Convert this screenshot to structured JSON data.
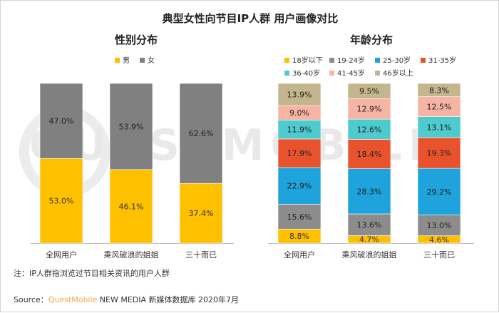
{
  "title": "典型女性向节目IP人群 用户画像对比",
  "colors": {
    "male": "#ffc000",
    "female": "#808080",
    "a18": "#ffc000",
    "a19": "#8c8c8c",
    "a25": "#1ea3dc",
    "a31": "#e8532d",
    "a36": "#4ecbcf",
    "a41": "#f7b4a4",
    "a46": "#c3b68e"
  },
  "gender": {
    "title": "性别分布",
    "legend": [
      "男",
      "女"
    ],
    "chart_data": {
      "type": "bar",
      "stacked": true,
      "categories": [
        "全网用户",
        "乘风破浪的姐姐",
        "三十而已"
      ],
      "series": [
        {
          "name": "男",
          "values": [
            53.0,
            46.1,
            37.4
          ],
          "labels": [
            "53.0%",
            "46.1%",
            "37.4%"
          ]
        },
        {
          "name": "女",
          "values": [
            47.0,
            53.9,
            62.6
          ],
          "labels": [
            "47.0%",
            "53.9%",
            "62.6%"
          ]
        }
      ],
      "ylim": [
        0,
        100
      ]
    }
  },
  "age": {
    "title": "年龄分布",
    "legend": [
      "18岁以下",
      "19-24岁",
      "25-30岁",
      "31-35岁",
      "36-40岁",
      "41-45岁",
      "46岁以上"
    ],
    "chart_data": {
      "type": "bar",
      "stacked": true,
      "categories": [
        "全网用户",
        "乘风破浪的姐姐",
        "三十而已"
      ],
      "series": [
        {
          "name": "18岁以下",
          "values": [
            8.8,
            4.7,
            4.6
          ],
          "labels": [
            "8.8%",
            "4.7%",
            "4.6%"
          ]
        },
        {
          "name": "19-24岁",
          "values": [
            15.6,
            13.6,
            13.0
          ],
          "labels": [
            "15.6%",
            "13.6%",
            "13.0%"
          ]
        },
        {
          "name": "25-30岁",
          "values": [
            22.9,
            28.3,
            29.2
          ],
          "labels": [
            "22.9%",
            "28.3%",
            "29.2%"
          ]
        },
        {
          "name": "31-35岁",
          "values": [
            17.9,
            18.4,
            19.3
          ],
          "labels": [
            "17.9%",
            "18.4%",
            "19.3%"
          ]
        },
        {
          "name": "36-40岁",
          "values": [
            11.9,
            12.6,
            13.1
          ],
          "labels": [
            "11.9%",
            "12.6%",
            "13.1%"
          ]
        },
        {
          "name": "41-45岁",
          "values": [
            9.0,
            12.9,
            12.5
          ],
          "labels": [
            "9.0%",
            "12.9%",
            "12.5%"
          ]
        },
        {
          "name": "46岁以上",
          "values": [
            13.9,
            9.5,
            8.3
          ],
          "labels": [
            "13.9%",
            "9.5%",
            "8.3%"
          ]
        }
      ],
      "ylim": [
        0,
        100
      ]
    }
  },
  "watermark": "QUESTMOBILE",
  "note": "注：IP人群指浏览过节目相关资讯的用户人群",
  "source": {
    "prefix": "Source：",
    "brand": "QuestMobile",
    "suffix": " NEW MEDIA 新媒体数据库 2020年7月"
  }
}
